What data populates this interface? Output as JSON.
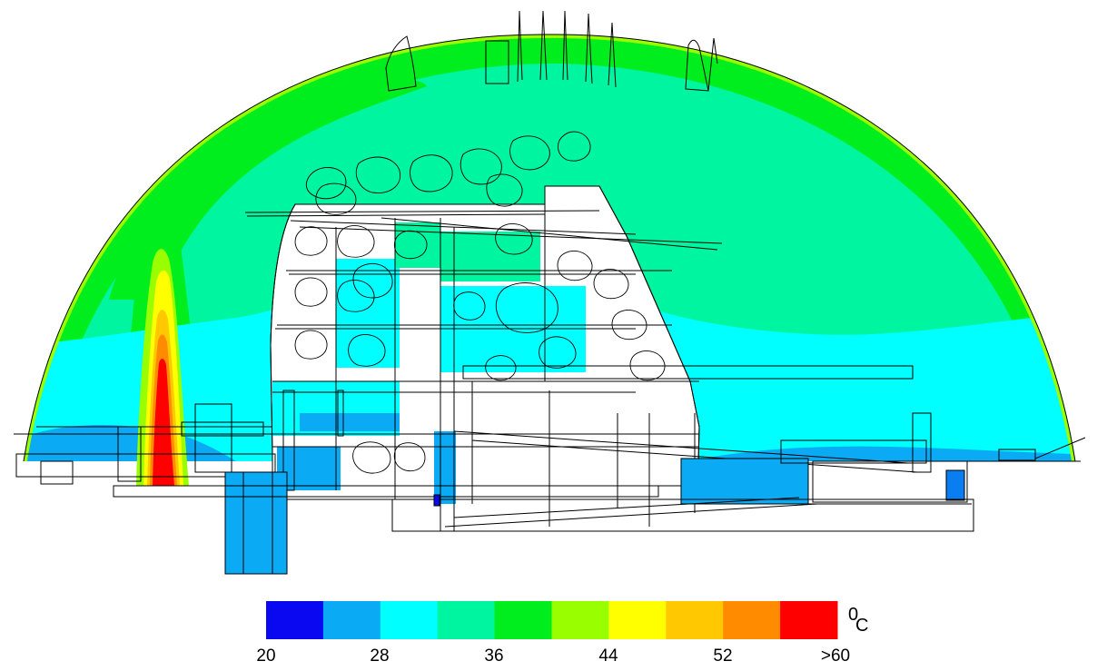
{
  "colorbar": {
    "colors": [
      "#0a08f0",
      "#0aaaf5",
      "#00ffff",
      "#00f5a0",
      "#00ee1e",
      "#99ff00",
      "#ffff00",
      "#ffc800",
      "#ff8c00",
      "#ff0000"
    ],
    "tick_labels": [
      "20",
      "28",
      "36",
      "44",
      "52",
      ">60"
    ],
    "unit_superscript": "0",
    "unit_letter": "C"
  },
  "palette": {
    "hot": "#ff0000",
    "warm": "#ff8c00",
    "mid_warm": "#ffc800",
    "yellow": "#ffff00",
    "lime": "#99ff00",
    "green": "#00ee1e",
    "aqua_green": "#00f5a0",
    "cyan": "#00ffff",
    "light_blue": "#0aaaf5",
    "blue": "#0a08f0",
    "outline": "#000000"
  }
}
